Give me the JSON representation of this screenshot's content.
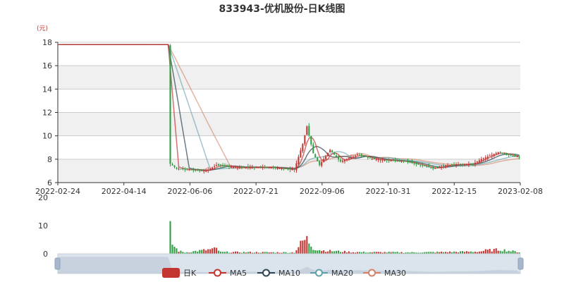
{
  "chart_data": {
    "type": "candlestick",
    "title": "833943-优机股份-日K线图",
    "y_unit": "(元)",
    "ylim": [
      6,
      18
    ],
    "y_ticks": [
      6,
      8,
      10,
      12,
      14,
      16,
      18
    ],
    "x_ticks": [
      "2022-02-24",
      "2022-04-14",
      "2022-06-06",
      "2022-07-21",
      "2022-09-06",
      "2022-10-31",
      "2022-12-15",
      "2023-02-08"
    ],
    "volume_ticks": [
      0,
      10,
      20
    ],
    "volume_ylim": [
      0,
      20
    ],
    "legend": [
      "日K",
      "MA5",
      "MA10",
      "MA20",
      "MA30"
    ],
    "colors": {
      "up": "#c23531",
      "down": "#2f9e44",
      "ma5": "#c23531",
      "ma10": "#2f4554",
      "ma20": "#61a0a8",
      "ma30": "#d48265"
    },
    "price_keypoints": [
      {
        "i": 0,
        "c": 17.8
      },
      {
        "i": 52,
        "c": 17.8
      },
      {
        "i": 53,
        "c": 7.6
      },
      {
        "i": 56,
        "c": 7.2
      },
      {
        "i": 70,
        "c": 7.0
      },
      {
        "i": 75,
        "c": 7.5
      },
      {
        "i": 85,
        "c": 7.3
      },
      {
        "i": 100,
        "c": 7.3
      },
      {
        "i": 112,
        "c": 7.1
      },
      {
        "i": 116,
        "c": 9.3
      },
      {
        "i": 118,
        "c": 10.8
      },
      {
        "i": 121,
        "c": 8.5
      },
      {
        "i": 124,
        "c": 7.5
      },
      {
        "i": 129,
        "c": 8.8
      },
      {
        "i": 134,
        "c": 7.8
      },
      {
        "i": 142,
        "c": 8.4
      },
      {
        "i": 150,
        "c": 8.0
      },
      {
        "i": 165,
        "c": 7.8
      },
      {
        "i": 172,
        "c": 7.5
      },
      {
        "i": 178,
        "c": 7.2
      },
      {
        "i": 185,
        "c": 7.5
      },
      {
        "i": 197,
        "c": 7.6
      },
      {
        "i": 201,
        "c": 8.0
      },
      {
        "i": 209,
        "c": 8.6
      },
      {
        "i": 215,
        "c": 8.3
      },
      {
        "i": 219,
        "c": 8.2
      }
    ],
    "volume_keypoints": [
      {
        "i": 0,
        "v": 0
      },
      {
        "i": 52,
        "v": 0
      },
      {
        "i": 53,
        "v": 8.5
      },
      {
        "i": 54,
        "v": 3.5
      },
      {
        "i": 55,
        "v": 2.5
      },
      {
        "i": 57,
        "v": 1.0
      },
      {
        "i": 60,
        "v": 0.5
      },
      {
        "i": 75,
        "v": 1.8
      },
      {
        "i": 77,
        "v": 0.6
      },
      {
        "i": 112,
        "v": 0.5
      },
      {
        "i": 116,
        "v": 4.5
      },
      {
        "i": 118,
        "v": 5.2
      },
      {
        "i": 121,
        "v": 2.0
      },
      {
        "i": 125,
        "v": 1.2
      },
      {
        "i": 140,
        "v": 0.6
      },
      {
        "i": 170,
        "v": 0.5
      },
      {
        "i": 200,
        "v": 0.8
      },
      {
        "i": 203,
        "v": 1.2
      },
      {
        "i": 210,
        "v": 1.5
      },
      {
        "i": 219,
        "v": 0.6
      }
    ],
    "n_points": 220
  }
}
